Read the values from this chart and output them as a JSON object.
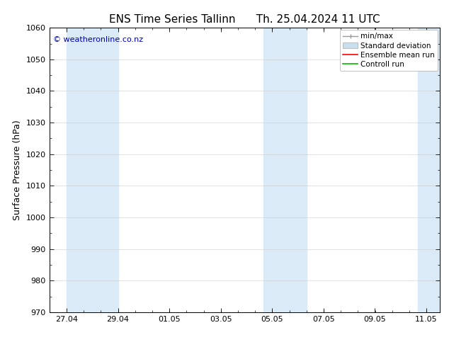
{
  "title_left": "ENS Time Series Tallinn",
  "title_right": "Th. 25.04.2024 11 UTC",
  "ylabel": "Surface Pressure (hPa)",
  "ylim": [
    970,
    1060
  ],
  "yticks": [
    970,
    980,
    990,
    1000,
    1010,
    1020,
    1030,
    1040,
    1050,
    1060
  ],
  "xlim": [
    0,
    15.2
  ],
  "x_tick_labels": [
    "27.04",
    "29.04",
    "01.05",
    "03.05",
    "05.05",
    "07.05",
    "09.05",
    "11.05"
  ],
  "x_tick_positions": [
    0.667,
    2.667,
    4.667,
    6.667,
    8.667,
    10.667,
    12.667,
    14.667
  ],
  "shaded_bands": [
    {
      "x_start": 0.667,
      "x_end": 2.667,
      "color": "#daeaf6"
    },
    {
      "x_start": 8.333,
      "x_end": 10.0,
      "color": "#daeaf6"
    },
    {
      "x_start": 14.333,
      "x_end": 15.2,
      "color": "#daeaf6"
    }
  ],
  "watermark": "© weatheronline.co.nz",
  "watermark_color": "#0000bb",
  "background_color": "#ffffff",
  "plot_bg_color": "#ffffff",
  "grid_color": "#cccccc",
  "legend_items": [
    {
      "label": "min/max",
      "color": "#999999",
      "style": "minmax"
    },
    {
      "label": "Standard deviation",
      "color": "#c8dff0",
      "style": "fill"
    },
    {
      "label": "Ensemble mean run",
      "color": "#ff0000",
      "style": "line"
    },
    {
      "label": "Controll run",
      "color": "#00bb00",
      "style": "line"
    }
  ],
  "font_family": "DejaVu Sans",
  "title_fontsize": 11,
  "ylabel_fontsize": 9,
  "tick_fontsize": 8,
  "watermark_fontsize": 8,
  "legend_fontsize": 7.5
}
